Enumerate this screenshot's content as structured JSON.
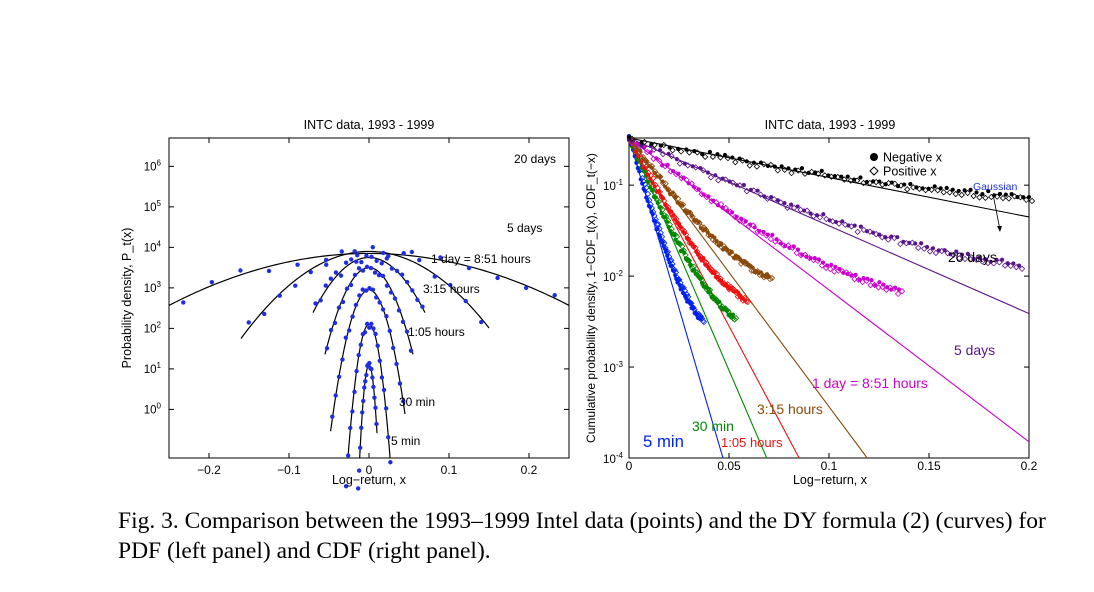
{
  "figure": {
    "caption": "Fig. 3. Comparison between the 1993–1999 Intel data (points) and the DY formula (2) (curves) for PDF (left panel) and CDF (right panel)."
  },
  "chart_data": [
    {
      "type": "scatter",
      "title": "INTC data, 1993 - 1999",
      "xlabel": "Log−return, x",
      "ylabel": "Probability density, P_t(x)",
      "xlim": [
        -0.25,
        0.25
      ],
      "ylim_decades": [
        -1.2,
        6.7
      ],
      "yscale": "log (curves vertically offset by one decade)",
      "xticks": [
        -0.2,
        -0.1,
        0,
        0.1,
        0.2
      ],
      "xtick_labels": [
        "−0.2",
        "−0.1",
        "0",
        "0.1",
        "0.2"
      ],
      "ytick_labels": [
        "10^0",
        "10^1",
        "10^2",
        "10^3",
        "10^4",
        "10^5",
        "10^6"
      ],
      "marker_color": "#1f2fe0",
      "curve_color": "#000000",
      "series": [
        {
          "name": "20 days",
          "label_text": "20 days",
          "center": 3.85,
          "width": 0.2207,
          "xrange": [
            -0.25,
            0.25
          ],
          "jitter": 0.22
        },
        {
          "name": "5 days",
          "label_text": "5 days",
          "center": 3.9,
          "width": 0.1091,
          "xrange": [
            -0.16,
            0.15
          ],
          "jitter": 0.25
        },
        {
          "name": "1 day = 8:51 hours",
          "label_text": "1 day = 8:51 hours",
          "center": 3.75,
          "width": 0.06,
          "xrange": [
            -0.07,
            0.07
          ],
          "jitter": 0.22
        },
        {
          "name": "3:15 hours",
          "label_text": "3:15 hours",
          "center": 3.5,
          "width": 0.0376,
          "xrange": [
            -0.055,
            0.055
          ],
          "jitter": 0.2
        },
        {
          "name": "1:05 hours",
          "label_text": "1:05 hours",
          "center": 2.95,
          "width": 0.0257,
          "xrange": [
            -0.048,
            0.045
          ],
          "jitter": 0.2
        },
        {
          "name": "30 min",
          "label_text": "30 min",
          "center": 2.1,
          "width": 0.0145,
          "xrange": [
            -0.03,
            0.028
          ],
          "jitter": 0.18
        },
        {
          "name": "5 min",
          "label_text": "5 min",
          "center": 1.1,
          "width": 0.0077,
          "xrange": [
            -0.018,
            0.01
          ],
          "jitter": 0.12
        }
      ]
    },
    {
      "type": "scatter",
      "title": "INTC data, 1993 - 1999",
      "xlabel": "Log−return, x",
      "ylabel": "Cumulative probability density, 1−CDF_t(x), CDF_t(−x)",
      "xlim": [
        0,
        0.2
      ],
      "ylim": [
        0.0001,
        0.33
      ],
      "yscale": "log",
      "xticks": [
        0,
        0.05,
        0.1,
        0.15,
        0.2
      ],
      "xtick_labels": [
        "0",
        "0.05",
        "0.1",
        "0.15",
        "0.2"
      ],
      "ytick_labels": [
        "10^-4",
        "10^-3",
        "10^-2",
        "10^-1"
      ],
      "legend": {
        "placement": "top-right",
        "entries": [
          "Negative x",
          "Positive x"
        ]
      },
      "annotation": "Gaussian",
      "series": [
        {
          "name": "5 min",
          "label_text": "5 min",
          "color": "#0022ee",
          "decay": 0.0058,
          "xmax": 0.036
        },
        {
          "name": "30 min",
          "label_text": "30 min",
          "color": "#008800",
          "decay": 0.0085,
          "xmax": 0.052
        },
        {
          "name": "1:05 hours",
          "label_text": "1:05 hours",
          "color": "#ee1111",
          "decay": 0.0105,
          "xmax": 0.058
        },
        {
          "name": "3:15 hours",
          "label_text": "3:15 hours",
          "color": "#8b4a0a",
          "decay": 0.0147,
          "xmax": 0.07
        },
        {
          "name": "1 day = 8:51 hours",
          "label_text": "1 day = 8:51 hours",
          "color": "#cc00cc",
          "decay": 0.026,
          "xmax": 0.135
        },
        {
          "name": "5 days",
          "label_text": "5 days",
          "color": "#5a148a",
          "decay": 0.045,
          "xmax": 0.195
        },
        {
          "name": "20 days",
          "label_text": "20 days",
          "color": "#000000",
          "decay": 0.1,
          "xmax": 0.2
        }
      ]
    }
  ]
}
